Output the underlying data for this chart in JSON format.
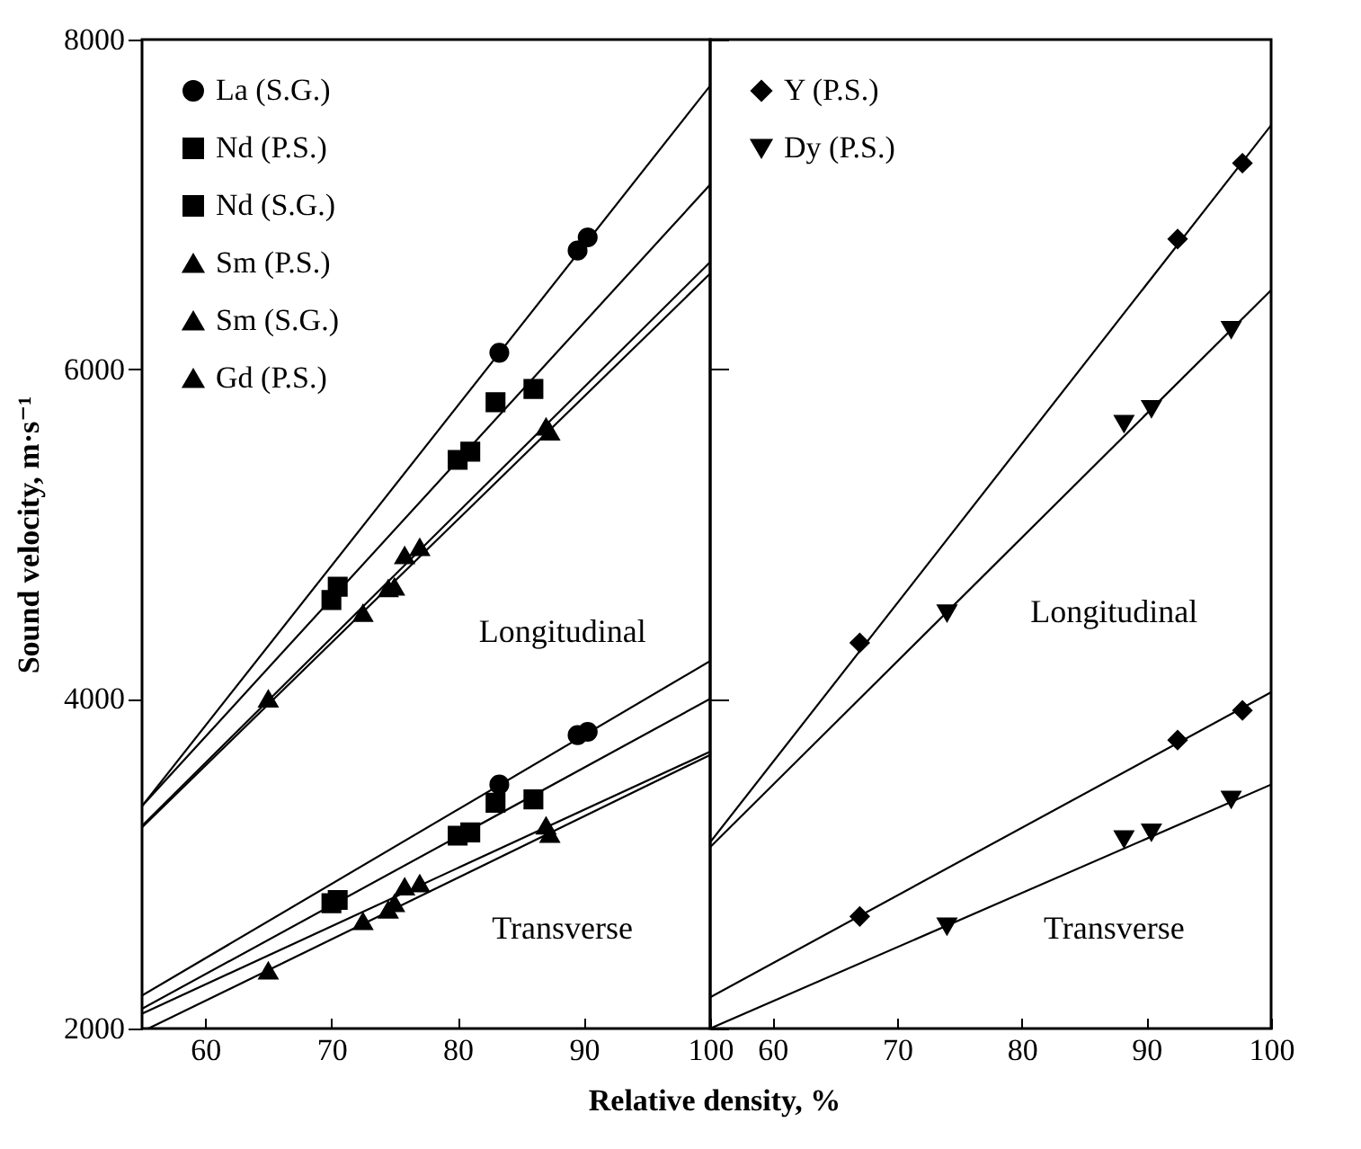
{
  "chart_data": [
    {
      "type": "scatter",
      "xlabel": "Relative density, %",
      "ylabel": "Sound velocity, m·s⁻¹",
      "xlim": [
        55,
        100
      ],
      "xticks": [
        60,
        70,
        80,
        90,
        100
      ],
      "ylim": [
        2000,
        8000
      ],
      "yticks": [
        2000,
        4000,
        6000,
        8000
      ],
      "legend": "top left",
      "annotations": [
        "Longitudinal",
        "Transverse"
      ],
      "series": [
        {
          "name": "La (S.G.)",
          "type": "scatter",
          "marker": "circle",
          "color": "#000000",
          "x": [
            83.3,
            89.5,
            90.3,
            83.3,
            89.5,
            90.3
          ],
          "values": [
            6100,
            6720,
            6800,
            3480,
            3780,
            3800
          ]
        },
        {
          "name": "Nd (P.S.)",
          "type": "scatter",
          "marker": "square",
          "color": "#000000",
          "x": [
            70,
            70.5,
            80,
            86,
            70,
            70.5,
            80,
            86
          ],
          "values": [
            4600,
            4680,
            5450,
            5880,
            2760,
            2780,
            3170,
            3390
          ]
        },
        {
          "name": "Nd (S.G.)",
          "type": "scatter",
          "marker": "square",
          "color": "#000000",
          "x": [
            81,
            83,
            81,
            83
          ],
          "values": [
            5500,
            5800,
            3190,
            3370
          ]
        },
        {
          "name": "Sm (P.S.)",
          "type": "scatter",
          "marker": "triangle",
          "color": "#000000",
          "x": [
            75.8,
            77,
            87,
            75.8,
            77,
            87
          ],
          "values": [
            4870,
            4920,
            5650,
            2860,
            2880,
            3230
          ]
        },
        {
          "name": "Sm (S.G.)",
          "type": "scatter",
          "marker": "triangle",
          "color": "#000000",
          "x": [
            75,
            75
          ],
          "values": [
            4680,
            2760
          ]
        },
        {
          "name": "Gd (P.S.)",
          "type": "scatter",
          "marker": "triangle",
          "color": "#000000",
          "x": [
            65,
            72.5,
            74.5,
            87.3,
            65,
            72.5,
            74.5,
            87.3
          ],
          "values": [
            4000,
            4520,
            4670,
            5620,
            2350,
            2650,
            2720,
            3180
          ]
        },
        {
          "type": "line",
          "color": "#000000",
          "x": [
            55,
            100
          ],
          "values": [
            3350,
            7720
          ]
        },
        {
          "type": "line",
          "color": "#000000",
          "x": [
            55,
            100
          ],
          "values": [
            3350,
            7120
          ]
        },
        {
          "type": "line",
          "color": "#000000",
          "x": [
            55,
            100
          ],
          "values": [
            3230,
            6650
          ]
        },
        {
          "type": "line",
          "color": "#000000",
          "x": [
            55,
            100
          ],
          "values": [
            3220,
            6580
          ]
        },
        {
          "type": "line",
          "color": "#000000",
          "x": [
            55,
            100
          ],
          "values": [
            2200,
            4230
          ]
        },
        {
          "type": "line",
          "color": "#000000",
          "x": [
            55,
            100
          ],
          "values": [
            2120,
            4000
          ]
        },
        {
          "type": "line",
          "color": "#000000",
          "x": [
            55,
            100
          ],
          "values": [
            2090,
            3680
          ]
        },
        {
          "type": "line",
          "color": "#000000",
          "x": [
            55.5,
            100
          ],
          "values": [
            2000,
            3660
          ]
        }
      ]
    },
    {
      "type": "scatter",
      "xlim": [
        55,
        100
      ],
      "xticks": [
        60,
        70,
        80,
        90,
        100
      ],
      "ylim": [
        2000,
        8000
      ],
      "yticks": [
        2000,
        4000,
        6000,
        8000
      ],
      "tick_labels": "x",
      "legend": "top left",
      "annotations": [
        "Longitudinal",
        "Transverse"
      ],
      "series": [
        {
          "name": "Y (P.S.)",
          "type": "scatter",
          "marker": "diamond",
          "color": "#000000",
          "x": [
            67,
            92.5,
            97.7,
            67,
            92.5,
            97.7
          ],
          "values": [
            4340,
            6790,
            7250,
            2680,
            3750,
            3930
          ]
        },
        {
          "name": "Dy (P.S.)",
          "type": "scatter",
          "marker": "triangle-down",
          "color": "#000000",
          "x": [
            74,
            88.2,
            90.4,
            96.8,
            74,
            88.2,
            90.4,
            96.8
          ],
          "values": [
            4520,
            5670,
            5760,
            6240,
            2620,
            3150,
            3190,
            3390
          ]
        },
        {
          "type": "line",
          "color": "#000000",
          "x": [
            55,
            100
          ],
          "values": [
            3130,
            7480
          ]
        },
        {
          "type": "line",
          "color": "#000000",
          "x": [
            55,
            100
          ],
          "values": [
            3100,
            6480
          ]
        },
        {
          "type": "line",
          "color": "#000000",
          "x": [
            55,
            100
          ],
          "values": [
            2190,
            4040
          ]
        },
        {
          "type": "line",
          "color": "#000000",
          "x": [
            55,
            100
          ],
          "values": [
            2000,
            3480
          ]
        }
      ]
    }
  ]
}
